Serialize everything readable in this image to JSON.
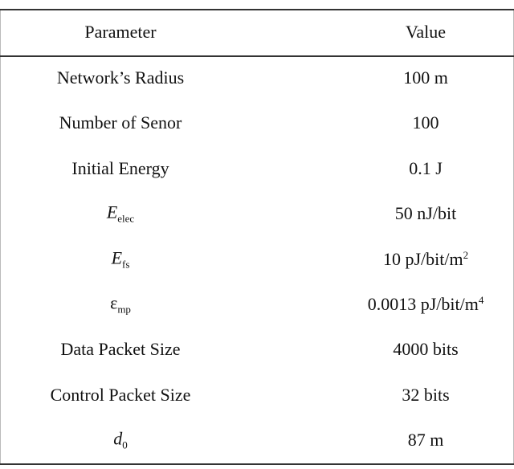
{
  "table": {
    "header": [
      "Parameter",
      "Value"
    ],
    "rows": [
      {
        "parameter": "Network’s Radius",
        "value": "100 m"
      },
      {
        "parameter": "Number of Senor",
        "value": "100"
      },
      {
        "parameter": "Initial Energy",
        "value": "0.1 J"
      },
      {
        "parameter": {
          "main": "E",
          "sub": "elec"
        },
        "value": "50 nJ/bit"
      },
      {
        "parameter": {
          "main": "E",
          "sub": "fs"
        },
        "value": {
          "main": "10 pJ/bit/m",
          "sup": "2"
        }
      },
      {
        "parameter": {
          "main": "ε",
          "sub": "mp"
        },
        "value": {
          "main": "0.0013 pJ/bit/m",
          "sup": "4"
        }
      },
      {
        "parameter": "Data Packet Size",
        "value": "4000 bits"
      },
      {
        "parameter": "Control Packet Size",
        "value": "32 bits"
      },
      {
        "parameter": {
          "main": "d",
          "sub": "0"
        },
        "value": "87 m"
      }
    ]
  }
}
